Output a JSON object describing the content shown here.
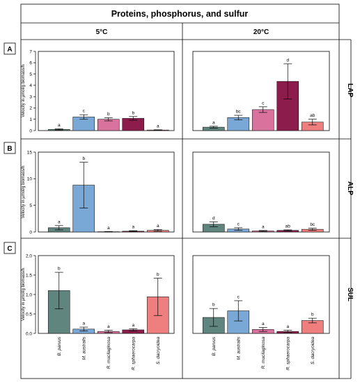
{
  "title": "Proteins, phosphorus, and sulfur",
  "columns": [
    "5°C",
    "20°C"
  ],
  "species": [
    "B. parvus",
    "M. australis",
    "R. mucilaginosa",
    "R. sphaerocarpa",
    "S. dacryoidea"
  ],
  "colors": [
    "#5f857e",
    "#7aa8d6",
    "#d9739e",
    "#8c1c4b",
    "#ef7e7e"
  ],
  "chart_data": [
    {
      "type": "bar",
      "row": "A",
      "enzyme": "LAP",
      "temperature": "5°C",
      "ylabel": "Velocity in µmol/g biomass/h",
      "ylim": [
        0,
        7
      ],
      "yticks": [
        0,
        1,
        2,
        3,
        4,
        5,
        6,
        7
      ],
      "categories": [
        "B. parvus",
        "M. australis",
        "R. mucilaginosa",
        "R. sphaerocarpa",
        "S. dacryoidea"
      ],
      "values": [
        0.1,
        1.2,
        1.0,
        1.08,
        0.05
      ],
      "errors": [
        0.05,
        0.2,
        0.14,
        0.16,
        0.02
      ],
      "labels": [
        "a",
        "c",
        "b",
        "b",
        "a"
      ]
    },
    {
      "type": "bar",
      "row": "A",
      "enzyme": "LAP",
      "temperature": "20°C",
      "ylim": [
        0,
        7
      ],
      "categories": [
        "B. parvus",
        "M. australis",
        "R. mucilaginosa",
        "R. sphaerocarpa",
        "S. dacryoidea"
      ],
      "values": [
        0.3,
        1.15,
        1.85,
        4.35,
        0.75
      ],
      "errors": [
        0.08,
        0.2,
        0.25,
        1.55,
        0.25
      ],
      "labels": [
        "a",
        "bc",
        "c",
        "d",
        "ab"
      ]
    },
    {
      "type": "bar",
      "row": "B",
      "enzyme": "ALP",
      "temperature": "5°C",
      "ylabel": "Velocity in µmol/g biomass/h",
      "ylim": [
        0,
        15
      ],
      "yticks": [
        0,
        5,
        10,
        15
      ],
      "categories": [
        "B. parvus",
        "M. australis",
        "R. mucilaginosa",
        "R. sphaerocarpa",
        "S. dacryoidea"
      ],
      "values": [
        0.8,
        8.8,
        0.05,
        0.15,
        0.3
      ],
      "errors": [
        0.4,
        4.3,
        0.03,
        0.1,
        0.15
      ],
      "labels": [
        "a",
        "b",
        "a",
        "a",
        "a"
      ]
    },
    {
      "type": "bar",
      "row": "B",
      "enzyme": "ALP",
      "temperature": "20°C",
      "ylim": [
        0,
        15
      ],
      "categories": [
        "B. parvus",
        "M. australis",
        "R. mucilaginosa",
        "R. sphaerocarpa",
        "S. dacryoidea"
      ],
      "values": [
        1.45,
        0.55,
        0.2,
        0.3,
        0.5
      ],
      "errors": [
        0.45,
        0.25,
        0.08,
        0.1,
        0.2
      ],
      "labels": [
        "d",
        "c",
        "a",
        "ab",
        "bc"
      ]
    },
    {
      "type": "bar",
      "row": "C",
      "enzyme": "SUL",
      "temperature": "5°C",
      "ylabel": "Velocity in µmol/g biomass/h",
      "ylim": [
        0,
        2.0
      ],
      "yticks": [
        "0.0",
        "0.5",
        "1.0",
        "1.5",
        "2.0"
      ],
      "categories": [
        "B. parvus",
        "M. australis",
        "R. mucilaginosa",
        "R. sphaerocarpa",
        "S. dacryoidea"
      ],
      "values": [
        1.1,
        0.11,
        0.05,
        0.09,
        0.94
      ],
      "errors": [
        0.47,
        0.05,
        0.03,
        0.03,
        0.48
      ],
      "labels": [
        "b",
        "a",
        "a",
        "a",
        "b"
      ]
    },
    {
      "type": "bar",
      "row": "C",
      "enzyme": "SUL",
      "temperature": "20°C",
      "ylim": [
        0,
        2.0
      ],
      "categories": [
        "B. parvus",
        "M. australis",
        "R. mucilaginosa",
        "R. sphaerocarpa",
        "S. dacryoidea"
      ],
      "values": [
        0.41,
        0.58,
        0.1,
        0.05,
        0.33
      ],
      "errors": [
        0.23,
        0.26,
        0.05,
        0.03,
        0.06
      ],
      "labels": [
        "b",
        "c",
        "a",
        "a",
        "b"
      ]
    }
  ]
}
